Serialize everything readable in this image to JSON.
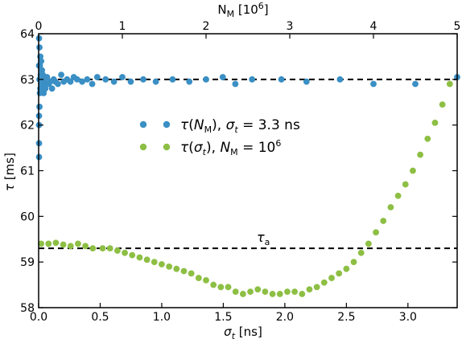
{
  "chart_data": {
    "type": "scatter",
    "x_bottom": {
      "label": "σt [ns]",
      "lim": [
        0.0,
        3.4
      ],
      "ticks": [
        "0.0",
        "0.5",
        "1.0",
        "1.5",
        "2.0",
        "2.5",
        "3.0"
      ],
      "tick_values": [
        0.0,
        0.5,
        1.0,
        1.5,
        2.0,
        2.5,
        3.0
      ]
    },
    "x_top": {
      "label": "NM [10^6]",
      "lim": [
        0,
        5.0
      ],
      "ticks": [
        "0",
        "1",
        "2",
        "3",
        "4",
        "5"
      ],
      "tick_values": [
        0,
        1,
        2,
        3,
        4,
        5
      ]
    },
    "y": {
      "label": "τ [ms]",
      "lim": [
        58.0,
        64.0
      ],
      "ticks": [
        "58",
        "59",
        "60",
        "61",
        "62",
        "63",
        "64"
      ],
      "tick_values": [
        58,
        59,
        60,
        61,
        62,
        63,
        64
      ]
    },
    "grid": false,
    "legend_placement": "center",
    "series": [
      {
        "name": "τ(NM), σt = 3.3 ns",
        "axis": "top",
        "color": "#3a8fc4",
        "x": [
          0.005,
          0.005,
          0.005,
          0.005,
          0.005,
          0.005,
          0.01,
          0.01,
          0.01,
          0.015,
          0.015,
          0.02,
          0.02,
          0.025,
          0.03,
          0.03,
          0.04,
          0.04,
          0.05,
          0.05,
          0.06,
          0.07,
          0.08,
          0.09,
          0.1,
          0.12,
          0.14,
          0.16,
          0.18,
          0.2,
          0.23,
          0.27,
          0.3,
          0.34,
          0.38,
          0.42,
          0.46,
          0.52,
          0.58,
          0.64,
          0.7,
          0.8,
          0.9,
          1.0,
          1.1,
          1.25,
          1.4,
          1.6,
          1.8,
          2.0,
          2.2,
          2.35,
          2.55,
          2.9,
          3.2,
          3.6,
          4.0,
          4.5,
          5.0
        ],
        "y": [
          61.3,
          61.6,
          62.0,
          62.2,
          63.3,
          63.9,
          62.4,
          63.0,
          63.7,
          62.7,
          63.3,
          62.8,
          63.5,
          63.1,
          62.9,
          63.4,
          62.8,
          63.2,
          62.9,
          63.1,
          62.7,
          63.0,
          62.8,
          62.9,
          63.05,
          62.9,
          62.95,
          62.8,
          63.0,
          62.95,
          62.9,
          63.1,
          62.95,
          63.0,
          62.95,
          63.05,
          63.0,
          62.95,
          63.0,
          62.9,
          63.05,
          63.0,
          62.95,
          63.05,
          62.95,
          63.0,
          62.95,
          63.0,
          62.95,
          63.0,
          63.05,
          62.9,
          63.0,
          63.0,
          62.95,
          63.0,
          62.9,
          62.9,
          63.05
        ]
      },
      {
        "name": "τ(σt), NM = 10^6",
        "axis": "bottom",
        "color": "#8dbf44",
        "x": [
          0.02,
          0.08,
          0.14,
          0.2,
          0.26,
          0.32,
          0.38,
          0.44,
          0.52,
          0.58,
          0.64,
          0.7,
          0.76,
          0.82,
          0.88,
          0.94,
          1.0,
          1.06,
          1.12,
          1.18,
          1.24,
          1.3,
          1.36,
          1.42,
          1.48,
          1.54,
          1.6,
          1.66,
          1.72,
          1.78,
          1.84,
          1.9,
          1.96,
          2.02,
          2.08,
          2.14,
          2.2,
          2.26,
          2.32,
          2.38,
          2.44,
          2.5,
          2.56,
          2.62,
          2.68,
          2.74,
          2.8,
          2.86,
          2.92,
          2.98,
          3.04,
          3.1,
          3.16,
          3.22,
          3.28,
          3.34
        ],
        "y": [
          59.4,
          59.4,
          59.42,
          59.38,
          59.35,
          59.4,
          59.35,
          59.3,
          59.3,
          59.3,
          59.25,
          59.2,
          59.15,
          59.1,
          59.05,
          59.0,
          58.95,
          58.9,
          58.85,
          58.8,
          58.75,
          58.65,
          58.6,
          58.5,
          58.45,
          58.45,
          58.35,
          58.3,
          58.35,
          58.4,
          58.35,
          58.3,
          58.3,
          58.35,
          58.35,
          58.3,
          58.4,
          58.45,
          58.55,
          58.65,
          58.75,
          58.85,
          59.0,
          59.2,
          59.4,
          59.65,
          59.9,
          60.2,
          60.45,
          60.7,
          61.0,
          61.35,
          61.7,
          62.05,
          62.45,
          62.9
        ]
      }
    ],
    "reference_lines": [
      {
        "y": 63.0,
        "style": "dashed"
      },
      {
        "y": 59.3,
        "style": "dashed",
        "label": "τa"
      }
    ]
  }
}
